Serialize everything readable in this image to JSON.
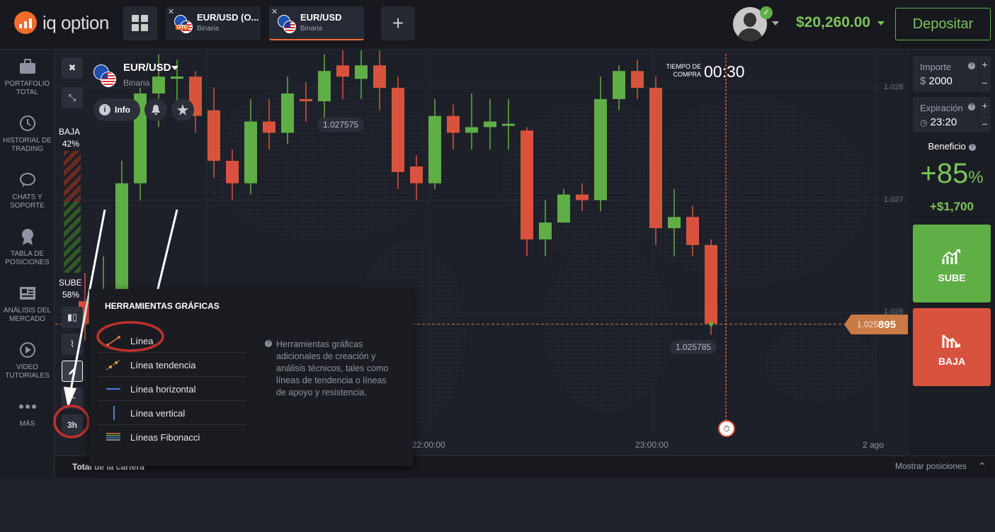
{
  "header": {
    "logo_text": "iq option",
    "tabs": [
      {
        "name": "EUR/USD (O...",
        "sub": "Binaria",
        "badge": "OTC"
      },
      {
        "name": "EUR/USD",
        "sub": "Binaria"
      }
    ],
    "balance": "$20,260.00",
    "deposit_label": "Depositar"
  },
  "sidebar": {
    "items": [
      {
        "label1": "PORTAFOLIO",
        "label2": "TOTAL",
        "icon": "briefcase-icon"
      },
      {
        "label1": "HISTORIAL DE",
        "label2": "TRADING",
        "icon": "history-icon"
      },
      {
        "label1": "CHATS Y",
        "label2": "SOPORTE",
        "icon": "chat-icon"
      },
      {
        "label1": "TABLA DE",
        "label2": "POSICIONES",
        "icon": "medal-icon"
      },
      {
        "label1": "ANÁLISIS DEL",
        "label2": "MERCADO",
        "icon": "news-icon"
      },
      {
        "label1": "VIDEO",
        "label2": "TUTORIALES",
        "icon": "play-icon"
      },
      {
        "label1": "MÁS",
        "label2": "",
        "icon": "more-icon"
      }
    ]
  },
  "asset": {
    "name": "EUR/USD",
    "type": "Binaria",
    "info_label": "Info"
  },
  "sentiment": {
    "down_label": "BAJA",
    "down_pct": "42%",
    "up_label": "SUBE",
    "up_pct": "58%"
  },
  "timer": {
    "label1": "TIEMPO DE",
    "label2": "COMPRA",
    "value": "00:30"
  },
  "chart": {
    "price_high_label": "1.027575",
    "price_low_label": "1.025785",
    "current_price_prefix": "1.025",
    "current_price_suffix": "895",
    "y_ticks": [
      "1.028",
      "1.027",
      "1.026"
    ],
    "x_ticks": [
      "22:00:00",
      "23:00:00"
    ],
    "period_label": "2 ago",
    "timeframe": "3h"
  },
  "colors": {
    "up": "#5fae46",
    "down": "#d8533d",
    "accent": "#f26c2b"
  },
  "right_panel": {
    "amount_label": "Importe",
    "amount_currency": "$",
    "amount_value": "2000",
    "expiry_label": "Expiración",
    "expiry_value": "23:20",
    "profit_label": "Beneficio",
    "profit_pct": "+85",
    "profit_pct_sign": "%",
    "profit_amount": "+$1,700",
    "up_label": "SUBE",
    "down_label": "BAJA"
  },
  "popup": {
    "title": "HERRAMIENTAS GRÁFICAS",
    "items": [
      {
        "label": "Línea",
        "icon": "line-icon"
      },
      {
        "label": "Línea tendencia",
        "icon": "trend-line-icon"
      },
      {
        "label": "Línea horizontal",
        "icon": "horizontal-line-icon"
      },
      {
        "label": "Línea vertical",
        "icon": "vertical-line-icon"
      },
      {
        "label": "Líneas Fibonacci",
        "icon": "fibonacci-icon"
      }
    ],
    "help_text": "Herramientas gráficas adicionales de creación y análisis técnicos, tales como líneas de tendencia o líneas de apoyo y resistencia."
  },
  "bottombar": {
    "portfolio_label": "Total de la cartera",
    "show_positions": "Mostrar posiciones"
  },
  "candles": [
    {
      "o": 1.0261,
      "h": 1.02635,
      "l": 1.02575,
      "c": 1.0259
    },
    {
      "o": 1.02595,
      "h": 1.0265,
      "l": 1.0258,
      "c": 1.0262
    },
    {
      "o": 1.0262,
      "h": 1.02735,
      "l": 1.026,
      "c": 1.02715
    },
    {
      "o": 1.02715,
      "h": 1.028,
      "l": 1.027,
      "c": 1.02795
    },
    {
      "o": 1.02795,
      "h": 1.0283,
      "l": 1.02765,
      "c": 1.0281
    },
    {
      "o": 1.0281,
      "h": 1.02825,
      "l": 1.02785,
      "c": 1.0281
    },
    {
      "o": 1.0281,
      "h": 1.02815,
      "l": 1.0276,
      "c": 1.02775
    },
    {
      "o": 1.0278,
      "h": 1.028,
      "l": 1.0272,
      "c": 1.02735
    },
    {
      "o": 1.02735,
      "h": 1.02745,
      "l": 1.027,
      "c": 1.02715
    },
    {
      "o": 1.02715,
      "h": 1.0279,
      "l": 1.02705,
      "c": 1.0277
    },
    {
      "o": 1.0277,
      "h": 1.0279,
      "l": 1.02745,
      "c": 1.0276
    },
    {
      "o": 1.0276,
      "h": 1.0281,
      "l": 1.0275,
      "c": 1.02795
    },
    {
      "o": 1.0279,
      "h": 1.02805,
      "l": 1.0277,
      "c": 1.02788
    },
    {
      "o": 1.02788,
      "h": 1.0283,
      "l": 1.0277,
      "c": 1.02815
    },
    {
      "o": 1.0282,
      "h": 1.02835,
      "l": 1.0279,
      "c": 1.0281
    },
    {
      "o": 1.02808,
      "h": 1.02845,
      "l": 1.0279,
      "c": 1.0282
    },
    {
      "o": 1.0282,
      "h": 1.02835,
      "l": 1.0278,
      "c": 1.028
    },
    {
      "o": 1.028,
      "h": 1.0281,
      "l": 1.0271,
      "c": 1.02725
    },
    {
      "o": 1.0273,
      "h": 1.0274,
      "l": 1.027,
      "c": 1.02715
    },
    {
      "o": 1.02715,
      "h": 1.0279,
      "l": 1.0271,
      "c": 1.02775
    },
    {
      "o": 1.02775,
      "h": 1.02785,
      "l": 1.02745,
      "c": 1.0276
    },
    {
      "o": 1.0276,
      "h": 1.02795,
      "l": 1.02745,
      "c": 1.02765
    },
    {
      "o": 1.02765,
      "h": 1.0279,
      "l": 1.02745,
      "c": 1.0277
    },
    {
      "o": 1.02768,
      "h": 1.0279,
      "l": 1.02745,
      "c": 1.02768
    },
    {
      "o": 1.02762,
      "h": 1.02765,
      "l": 1.0265,
      "c": 1.02665
    },
    {
      "o": 1.02665,
      "h": 1.027,
      "l": 1.0265,
      "c": 1.0268
    },
    {
      "o": 1.0268,
      "h": 1.0271,
      "l": 1.0268,
      "c": 1.02705
    },
    {
      "o": 1.02705,
      "h": 1.02715,
      "l": 1.0269,
      "c": 1.027
    },
    {
      "o": 1.027,
      "h": 1.0281,
      "l": 1.0269,
      "c": 1.0279
    },
    {
      "o": 1.0279,
      "h": 1.0282,
      "l": 1.0278,
      "c": 1.02815
    },
    {
      "o": 1.02815,
      "h": 1.02825,
      "l": 1.0279,
      "c": 1.028
    },
    {
      "o": 1.028,
      "h": 1.0281,
      "l": 1.0266,
      "c": 1.02675
    },
    {
      "o": 1.02675,
      "h": 1.0271,
      "l": 1.0265,
      "c": 1.02685
    },
    {
      "o": 1.02685,
      "h": 1.02695,
      "l": 1.0265,
      "c": 1.0266
    },
    {
      "o": 1.0266,
      "h": 1.02665,
      "l": 1.0258,
      "c": 1.0259
    }
  ]
}
